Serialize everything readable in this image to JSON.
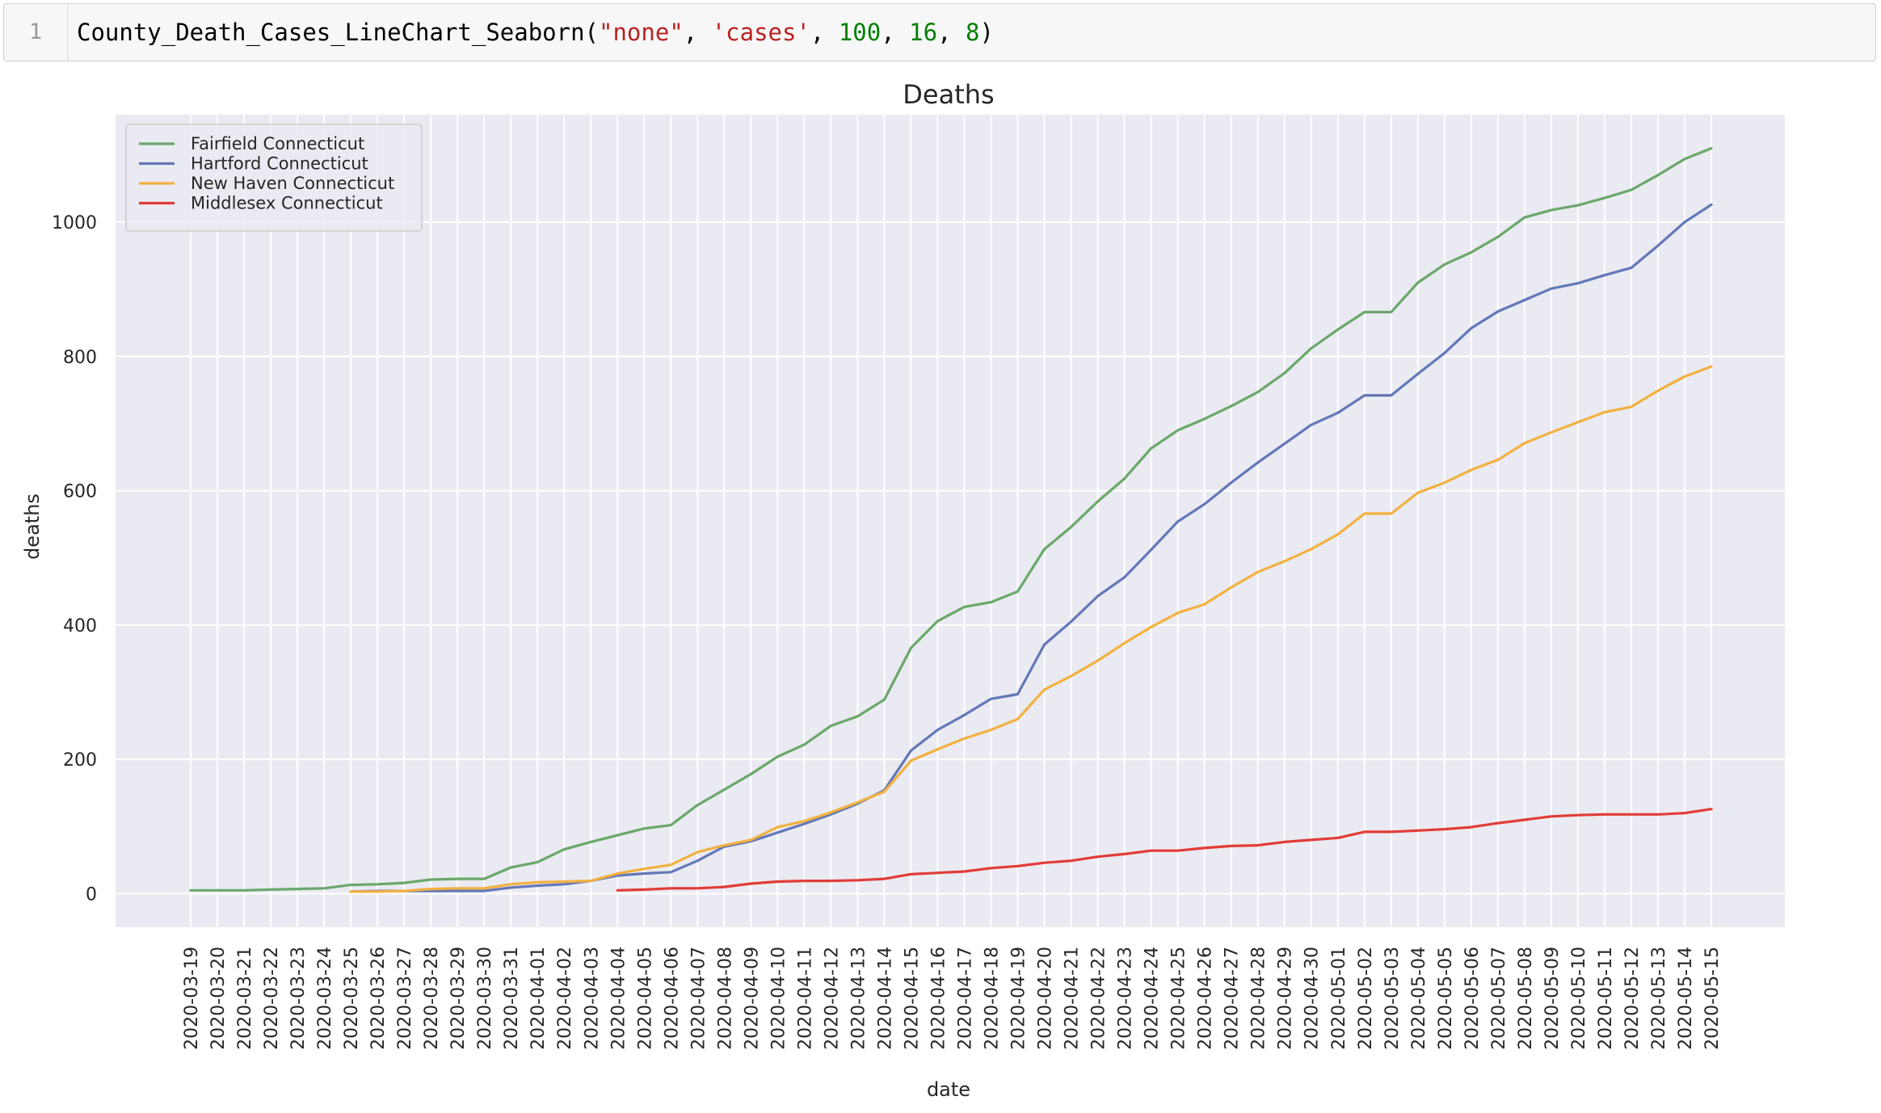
{
  "cell": {
    "line_number": "1",
    "code_tokens": [
      {
        "text": "County_Death_Cases_LineChart_Seaborn(",
        "kind": "plain"
      },
      {
        "text": "\"none\"",
        "kind": "str"
      },
      {
        "text": ", ",
        "kind": "plain"
      },
      {
        "text": "'cases'",
        "kind": "str"
      },
      {
        "text": ", ",
        "kind": "plain"
      },
      {
        "text": "100",
        "kind": "num"
      },
      {
        "text": ", ",
        "kind": "plain"
      },
      {
        "text": "16",
        "kind": "num"
      },
      {
        "text": ", ",
        "kind": "plain"
      },
      {
        "text": "8",
        "kind": "num"
      },
      {
        "text": ")",
        "kind": "plain"
      }
    ]
  },
  "colors": {
    "plot_background": "#eaeaf2",
    "grid": "#ffffff",
    "fairfield": "#6aa86a",
    "hartford": "#6478b8",
    "new_haven": "#f2b140",
    "middlesex": "#e13c36"
  },
  "chart_data": {
    "type": "line",
    "title": "Deaths",
    "xlabel": "date",
    "ylabel": "deaths",
    "ylim": [
      -50,
      1160
    ],
    "yticks": [
      0,
      200,
      400,
      600,
      800,
      1000
    ],
    "grid": true,
    "legend_position": "top-left",
    "x": [
      "2020-03-19",
      "2020-03-20",
      "2020-03-21",
      "2020-03-22",
      "2020-03-23",
      "2020-03-24",
      "2020-03-25",
      "2020-03-26",
      "2020-03-27",
      "2020-03-28",
      "2020-03-29",
      "2020-03-30",
      "2020-03-31",
      "2020-04-01",
      "2020-04-02",
      "2020-04-03",
      "2020-04-04",
      "2020-04-05",
      "2020-04-06",
      "2020-04-07",
      "2020-04-08",
      "2020-04-09",
      "2020-04-10",
      "2020-04-11",
      "2020-04-12",
      "2020-04-13",
      "2020-04-14",
      "2020-04-15",
      "2020-04-16",
      "2020-04-17",
      "2020-04-18",
      "2020-04-19",
      "2020-04-20",
      "2020-04-21",
      "2020-04-22",
      "2020-04-23",
      "2020-04-24",
      "2020-04-25",
      "2020-04-26",
      "2020-04-27",
      "2020-04-28",
      "2020-04-29",
      "2020-04-30",
      "2020-05-01",
      "2020-05-02",
      "2020-05-03",
      "2020-05-04",
      "2020-05-05",
      "2020-05-06",
      "2020-05-07",
      "2020-05-08",
      "2020-05-09",
      "2020-05-10",
      "2020-05-11",
      "2020-05-12",
      "2020-05-13",
      "2020-05-14",
      "2020-05-15"
    ],
    "series": [
      {
        "name": "Fairfield Connecticut",
        "color_key": "fairfield",
        "values": [
          5,
          5,
          5,
          6,
          7,
          8,
          13,
          14,
          16,
          21,
          22,
          22,
          39,
          47,
          66,
          77,
          87,
          97,
          102,
          132,
          155,
          178,
          204,
          222,
          250,
          264,
          289,
          366,
          406,
          427,
          434,
          450,
          513,
          546,
          584,
          618,
          663,
          690,
          707,
          726,
          747,
          775,
          812,
          840,
          866,
          866,
          910,
          937,
          955,
          978,
          1007,
          1018,
          1025,
          1036,
          1048,
          1070,
          1094,
          1110
        ]
      },
      {
        "name": "Hartford Connecticut",
        "color_key": "hartford",
        "values": [
          null,
          null,
          null,
          null,
          null,
          null,
          3,
          4,
          4,
          4,
          4,
          4,
          9,
          12,
          14,
          19,
          27,
          30,
          32,
          49,
          70,
          78,
          91,
          104,
          118,
          134,
          154,
          213,
          244,
          266,
          290,
          297,
          371,
          405,
          443,
          471,
          512,
          554,
          580,
          612,
          642,
          670,
          698,
          716,
          742,
          742,
          774,
          805,
          842,
          867,
          884,
          901,
          909,
          921,
          932,
          965,
          1000,
          1026
        ]
      },
      {
        "name": "New Haven Connecticut",
        "color_key": "new_haven",
        "values": [
          null,
          null,
          null,
          null,
          null,
          null,
          3,
          3,
          4,
          7,
          8,
          8,
          14,
          17,
          18,
          19,
          30,
          37,
          43,
          62,
          72,
          80,
          99,
          108,
          121,
          136,
          152,
          198,
          215,
          231,
          244,
          260,
          304,
          324,
          347,
          373,
          397,
          418,
          431,
          456,
          479,
          495,
          513,
          535,
          566,
          566,
          597,
          612,
          631,
          646,
          671,
          687,
          702,
          717,
          725,
          749,
          770,
          785
        ]
      },
      {
        "name": "Middlesex Connecticut",
        "color_key": "middlesex",
        "values": [
          null,
          null,
          null,
          null,
          null,
          null,
          null,
          null,
          null,
          null,
          null,
          null,
          null,
          null,
          null,
          null,
          5,
          6,
          8,
          8,
          10,
          15,
          18,
          19,
          19,
          20,
          22,
          29,
          31,
          33,
          38,
          41,
          46,
          49,
          55,
          59,
          64,
          64,
          68,
          71,
          72,
          77,
          80,
          83,
          92,
          92,
          94,
          96,
          99,
          105,
          110,
          115,
          117,
          118,
          118,
          118,
          120,
          126
        ]
      }
    ]
  }
}
